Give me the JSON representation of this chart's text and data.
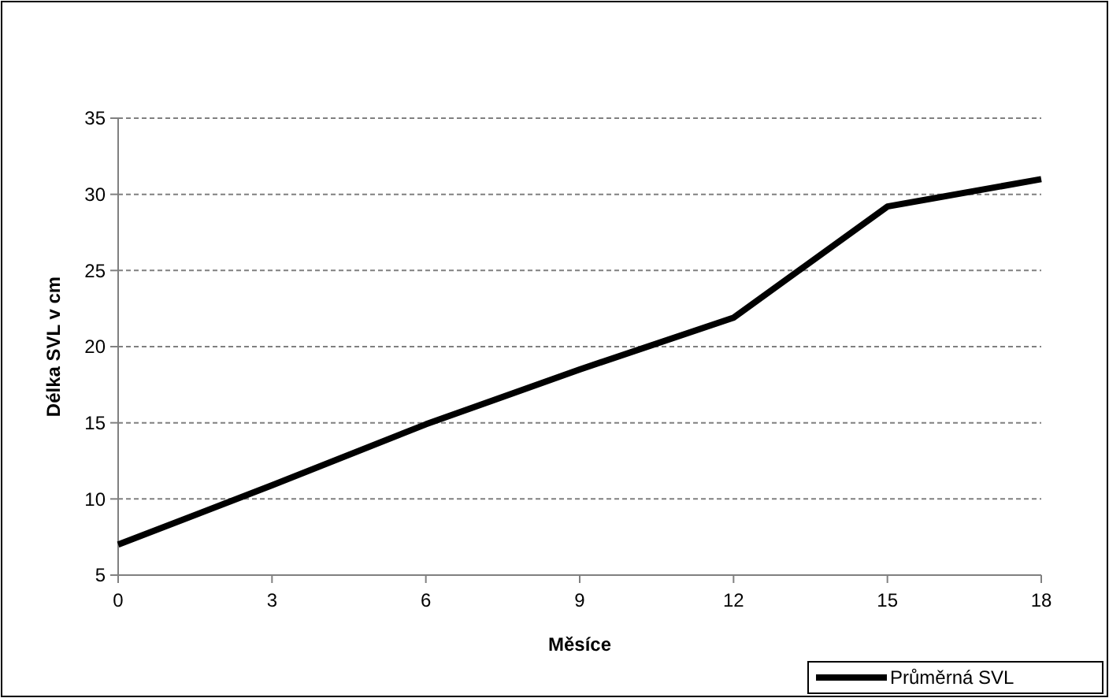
{
  "chart_data": {
    "type": "line",
    "xlabel": "Měsíce",
    "ylabel": "Délka SVL v cm",
    "x": [
      0,
      3,
      6,
      9,
      12,
      15,
      18
    ],
    "series": [
      {
        "name": "Průměrná SVL",
        "color": "#000000",
        "values": [
          7,
          10.9,
          14.9,
          18.5,
          21.9,
          29.2,
          31
        ]
      }
    ],
    "xlim": [
      0,
      18
    ],
    "xticks": [
      0,
      3,
      6,
      9,
      12,
      15,
      18
    ],
    "ylim": [
      5,
      35
    ],
    "yticks": [
      5,
      10,
      15,
      20,
      25,
      30,
      35
    ],
    "grid": "y",
    "legend": "bottom right",
    "marker": "none",
    "line_style": "solid"
  }
}
